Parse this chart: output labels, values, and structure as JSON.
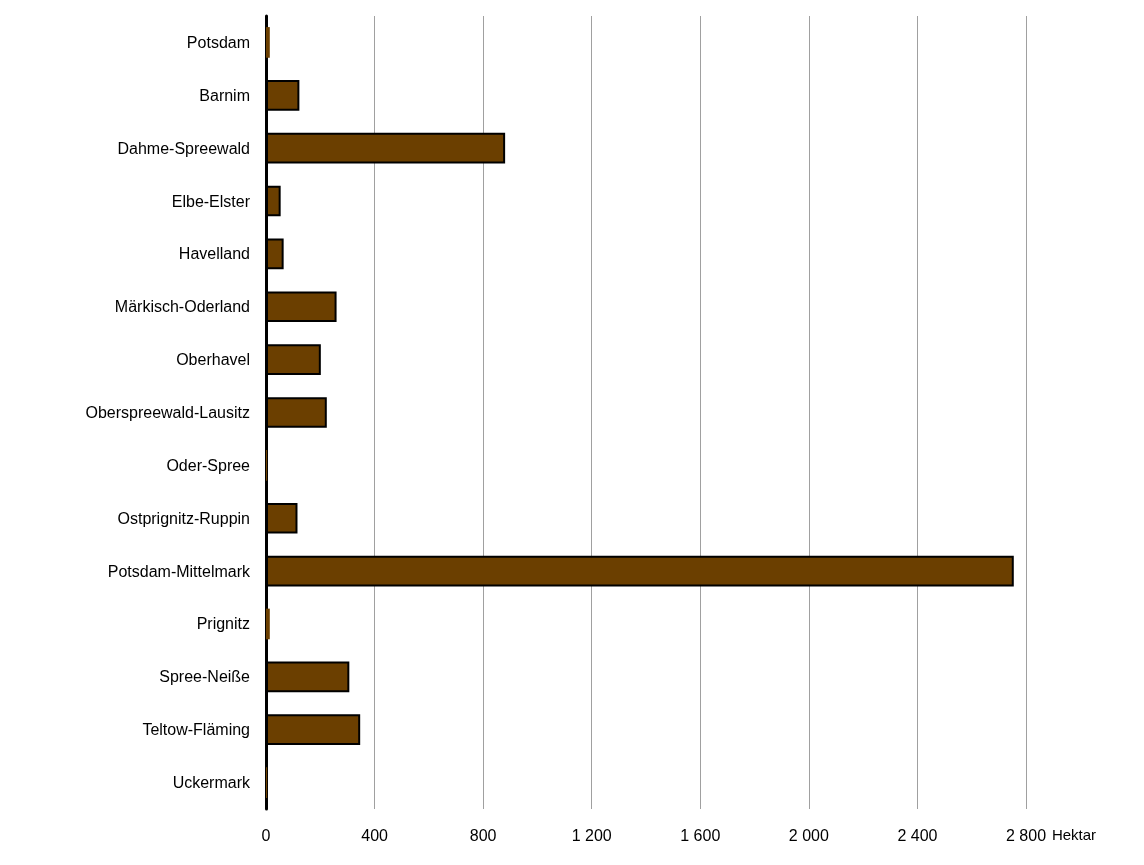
{
  "chart_data": {
    "type": "bar",
    "orientation": "horizontal",
    "xlabel": "Hektar",
    "categories": [
      "Potsdam",
      "Barnim",
      "Dahme-Spreewald",
      "Elbe-Elster",
      "Havelland",
      "Märkisch-Oderland",
      "Oberhavel",
      "Oberspreewald-Lausitz",
      "Oder-Spree",
      "Ostprignitz-Ruppin",
      "Potsdam-Mittelmark",
      "Prignitz",
      "Spree-Neiße",
      "Teltow-Fläming",
      "Uckermark"
    ],
    "values": [
      14,
      123,
      881,
      54,
      65,
      260,
      202,
      224,
      4,
      116,
      2755,
      14,
      307,
      347,
      4
    ],
    "color": "#6b3f00",
    "xlim": [
      0,
      2800
    ],
    "xticks": [
      0,
      400,
      800,
      {
        "value": 1200,
        "label": "1 200"
      },
      {
        "value": 1600,
        "label": "1 600"
      },
      {
        "value": 2000,
        "label": "2 000"
      },
      {
        "value": 2400,
        "label": "2 400"
      },
      {
        "value": 2800,
        "label": "2 800"
      }
    ],
    "grid": "x"
  }
}
